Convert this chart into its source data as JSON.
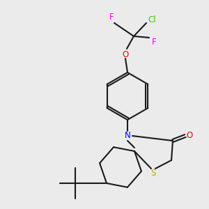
{
  "bg_color": "#ebebeb",
  "bond_color": "#1a1a1a",
  "F_color": "#ff00ee",
  "Cl_color": "#33cc00",
  "O_color": "#ff0000",
  "N_color": "#0000ff",
  "S_color": "#bbaa00",
  "bond_width": 1.5,
  "font_size": 8.5,
  "figsize": [
    3.0,
    3.0
  ],
  "dpi": 100,
  "xlim": [
    0,
    300
  ],
  "ylim": [
    0,
    300
  ]
}
